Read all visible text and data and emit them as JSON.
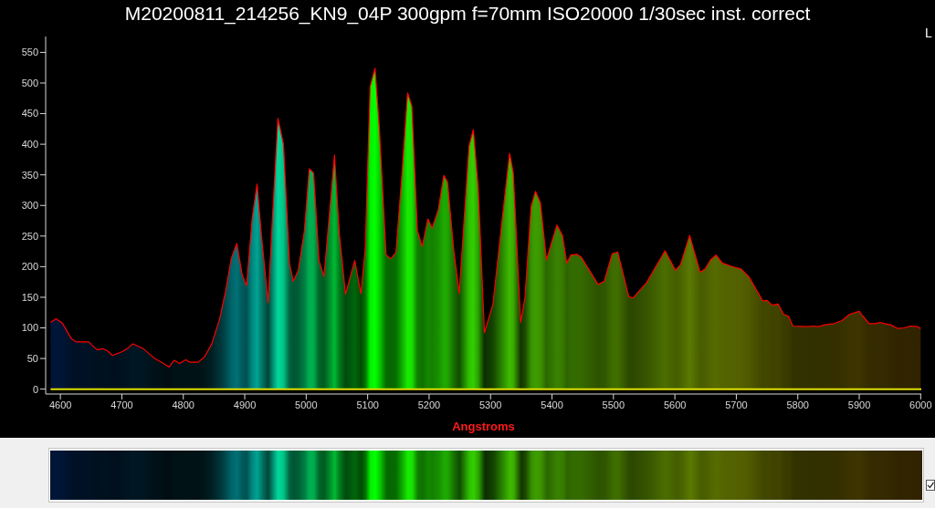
{
  "chart_data": {
    "type": "area",
    "title": "M20200811_214256_KN9_04P 300gpm f=70mm ISO20000 1/30sec inst. correct",
    "xlabel": "Angstroms",
    "x": [
      4584,
      4593,
      4603,
      4618,
      4626,
      4646,
      4650,
      4660,
      4669,
      4677,
      4685,
      4700,
      4710,
      4718,
      4735,
      4752,
      4764,
      4777,
      4785,
      4794,
      4804,
      4810,
      4824,
      4834,
      4846,
      4859,
      4869,
      4878,
      4887,
      4896,
      4903,
      4912,
      4920,
      4927,
      4938,
      4945,
      4954,
      4963,
      4973,
      4979,
      4987,
      4997,
      5005,
      5012,
      5021,
      5029,
      5038,
      5046,
      5054,
      5064,
      5079,
      5089,
      5096,
      5104,
      5112,
      5119,
      5130,
      5138,
      5146,
      5156,
      5165,
      5172,
      5181,
      5189,
      5198,
      5205,
      5215,
      5224,
      5230,
      5240,
      5249,
      5265,
      5272,
      5280,
      5290,
      5304,
      5319,
      5331,
      5337,
      5349,
      5356,
      5366,
      5373,
      5381,
      5391,
      5408,
      5417,
      5424,
      5431,
      5441,
      5448,
      5475,
      5485,
      5498,
      5507,
      5525,
      5532,
      5554,
      5584,
      5601,
      5609,
      5624,
      5641,
      5649,
      5658,
      5667,
      5677,
      5691,
      5708,
      5720,
      5743,
      5750,
      5758,
      5768,
      5777,
      5785,
      5792,
      5814,
      5826,
      5834,
      5844,
      5859,
      5872,
      5884,
      5900,
      5906,
      5916,
      5926,
      5934,
      5941,
      5951,
      5963,
      5973,
      5983,
      5995,
      6000
    ],
    "series": [
      {
        "color": "#ff0000",
        "values": [
          109,
          115,
          108,
          82,
          77,
          77,
          73,
          64,
          66,
          62,
          55,
          61,
          67,
          74,
          66,
          51,
          44,
          36,
          47,
          42,
          48,
          44,
          44,
          52,
          73,
          114,
          161,
          213,
          238,
          186,
          169,
          278,
          335,
          253,
          141,
          278,
          442,
          400,
          204,
          176,
          194,
          258,
          360,
          353,
          209,
          184,
          288,
          382,
          253,
          155,
          210,
          156,
          228,
          494,
          524,
          427,
          219,
          213,
          223,
          353,
          484,
          462,
          258,
          233,
          278,
          263,
          293,
          349,
          338,
          228,
          156,
          397,
          424,
          328,
          92,
          139,
          278,
          385,
          353,
          109,
          149,
          298,
          323,
          305,
          211,
          268,
          251,
          206,
          219,
          220,
          215,
          171,
          176,
          221,
          224,
          151,
          149,
          174,
          226,
          194,
          203,
          251,
          191,
          196,
          211,
          219,
          206,
          201,
          196,
          184,
          144,
          145,
          137,
          139,
          122,
          119,
          103,
          102,
          103,
          102,
          105,
          107,
          112,
          122,
          127,
          119,
          107,
          107,
          109,
          107,
          105,
          99,
          100,
          103,
          102,
          99
        ]
      },
      {
        "type": "line",
        "color": "#e0e000",
        "x": [
          4584,
          6001
        ],
        "values": [
          0,
          0
        ]
      }
    ],
    "xlim": [
      4576,
      6001
    ],
    "xticks": [
      4600,
      4700,
      4800,
      4900,
      5000,
      5100,
      5200,
      5300,
      5400,
      5500,
      5600,
      5700,
      5800,
      5900,
      6000
    ],
    "ylim": [
      -8,
      576
    ],
    "yticks": [
      0,
      50,
      100,
      150,
      200,
      250,
      300,
      350,
      400,
      450,
      500,
      550
    ],
    "annotations": [
      "L"
    ]
  }
}
